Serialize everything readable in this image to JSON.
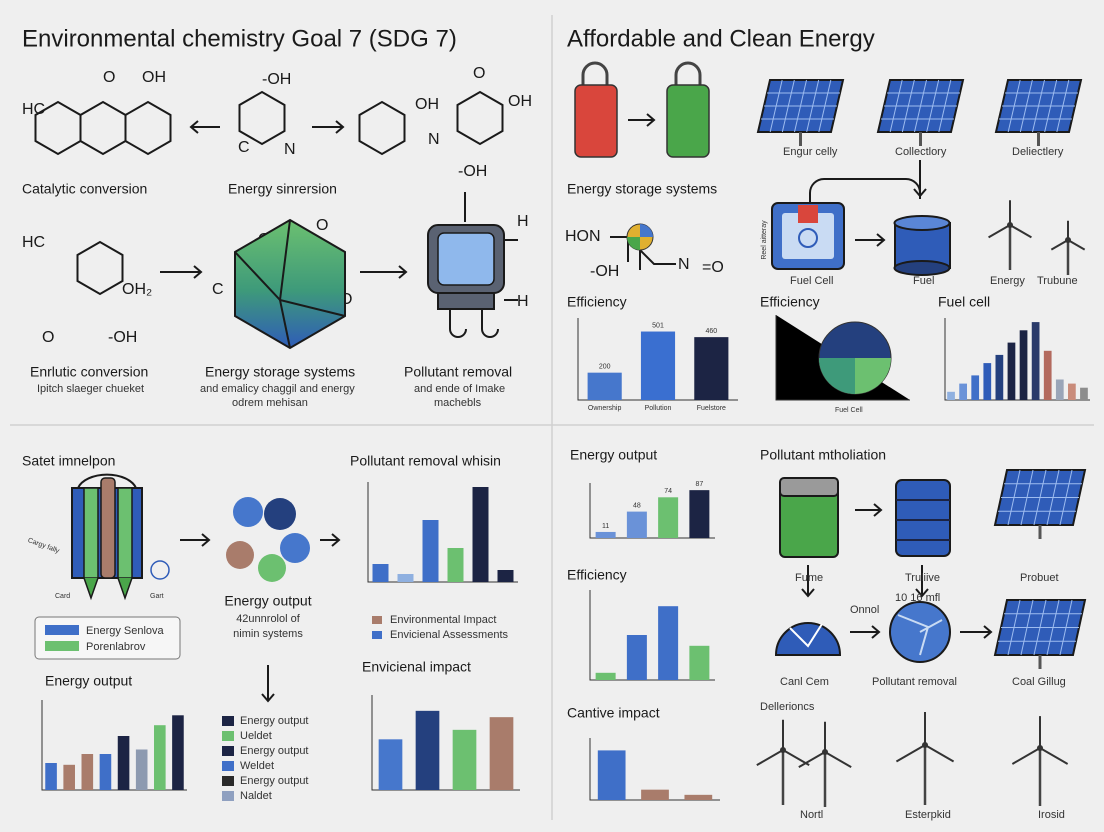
{
  "left_top": {
    "title": "Environmental chemistry  Goal 7 (SDG 7)",
    "chem": [
      "HC",
      "O",
      "OH",
      "-OH",
      "C",
      "N",
      "OH",
      "O",
      "OH",
      "N",
      "-OH",
      "HC",
      "OH₂",
      "O",
      "-OH",
      "O",
      "O",
      "C",
      "O",
      "H",
      "H"
    ],
    "labels": [
      "Catalytic conversion",
      "Energy sinrersion",
      "Enrlutic conversion",
      "Energy storage systems",
      "Pollutant removal"
    ],
    "sublabels": [
      "Ipitch slaeger chueket",
      "and emalicy chaggil and energy",
      "odrem mehisan",
      "and ende of Imake",
      "machebls"
    ]
  },
  "right_top": {
    "title": "Affordable and Clean Energy",
    "panel_labels": [
      "Engur celly",
      "Collectlory",
      "Deliectlery"
    ],
    "storage": "Energy storage systems",
    "chem": [
      "HON",
      "-OH",
      "N",
      "=O"
    ],
    "device_labels": [
      "Reel aitteray",
      "Fuel Cell",
      "Fuel",
      "Energy",
      "Trubune"
    ],
    "headings": [
      "Efficiency",
      "Efficiency",
      "Fuel cell"
    ],
    "pie_labels": [
      "Fuel Cell"
    ]
  },
  "left_bottom": {
    "title": "Satet imnelpon",
    "device_labels": [
      "Cargy fally",
      "Card",
      "Gart"
    ],
    "legend": [
      "Energy Senlova",
      "Porenlabrov"
    ],
    "center": [
      "Energy output",
      "42unnrolol of",
      "nimin systems"
    ],
    "removal_title": "Pollutant removal whisin",
    "removal_legend": [
      "Environmental Impact",
      "Envicienal Assessments"
    ],
    "impact_title": "Envicienal impact",
    "output_title": "Energy output",
    "list": [
      "Energy output",
      "Ueldet",
      "Energy output",
      "Weldet",
      "Energy output",
      "Naldet"
    ]
  },
  "right_bottom": {
    "headings": [
      "Energy output",
      "Efficiency",
      "Cantive impact"
    ],
    "title": "Pollutant mtholiation",
    "row1": [
      "Fume",
      "Truliive",
      "Probuet"
    ],
    "notes": [
      "Onnol",
      "10   16 mfl"
    ],
    "row2": [
      "Canl Cem",
      "Pollutant removal",
      "Coal Gillug"
    ],
    "turbine_title": "Dellerioncs",
    "turbines": [
      "Nortl",
      "Esterpkid",
      "Irosid"
    ]
  },
  "charts": {
    "tr_efficiency": {
      "type": "bar",
      "values": [
        200,
        501,
        460
      ],
      "ylim": [
        0,
        600
      ],
      "colors": [
        "#4677cc",
        "#3a6fd0",
        "#1c2444"
      ],
      "categories": [
        "Ownership",
        "Pollution",
        "Fuelstore"
      ]
    },
    "tr_fuelcell": {
      "type": "bar",
      "values": [
        10,
        20,
        30,
        45,
        55,
        70,
        85,
        95,
        60,
        25,
        20,
        15
      ],
      "ylim": [
        0,
        100
      ],
      "colors": [
        "#8fb0e0",
        "#6a92d8",
        "#3f6fc8",
        "#2f5cb8",
        "#24407e",
        "#1c2444",
        "#1c2444",
        "#2a3a6a",
        "#b36a5e",
        "#9aa5b8",
        "#c98b7a",
        "#8d8d8d"
      ]
    },
    "lb_removal": {
      "type": "bar",
      "values": [
        18,
        8,
        62,
        34,
        95,
        12
      ],
      "ylim": [
        0,
        100
      ],
      "colors": [
        "#3f6fc8",
        "#8fb0e0",
        "#3f6fc8",
        "#6cc070",
        "#1c2444",
        "#1c2444"
      ]
    },
    "lb_output": {
      "type": "bar",
      "values": [
        30,
        28,
        40,
        40,
        60,
        45,
        72,
        83
      ],
      "ylim": [
        0,
        100
      ],
      "colors": [
        "#3f6fc8",
        "#a97c6b",
        "#a97c6b",
        "#3f6fc8",
        "#1c2444",
        "#8d9ab0",
        "#6cc070",
        "#1c2444"
      ]
    },
    "lb_impact": {
      "type": "bar",
      "values": [
        112,
        130,
        118,
        126
      ],
      "ylim": [
        80,
        140
      ],
      "colors": [
        "#4677cc",
        "#24407e",
        "#6cc070",
        "#a97c6b"
      ]
    },
    "rb_output": {
      "type": "bar",
      "values": [
        11,
        48,
        74,
        87
      ],
      "ylim": [
        0,
        100
      ],
      "colors": [
        "#6a92d8",
        "#6a92d8",
        "#6cc070",
        "#1c2444"
      ]
    },
    "rb_efficiency": {
      "type": "bar",
      "values": [
        8,
        50,
        82,
        38
      ],
      "ylim": [
        0,
        100
      ],
      "colors": [
        "#6cc070",
        "#3f6fc8",
        "#3f6fc8",
        "#6cc070"
      ]
    },
    "rb_impact": {
      "type": "bar",
      "values": [
        48,
        10,
        5
      ],
      "ylim": [
        0,
        60
      ],
      "colors": [
        "#3f6fc8",
        "#a97c6b",
        "#a97c6b"
      ]
    }
  }
}
